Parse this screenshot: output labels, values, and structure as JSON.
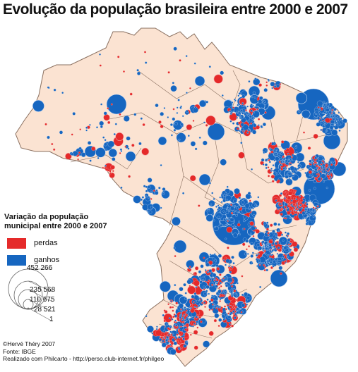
{
  "title": "Evolução da população brasileira entre 2000 e 2007",
  "colors": {
    "land": "#fbe3d2",
    "border": "#8a7060",
    "gain": "#1666c0",
    "loss": "#e52a2a",
    "gain_outline": "#c9d8ef"
  },
  "legend": {
    "title_line1": "Variação da população",
    "title_line2": "municipal entre 2000 e 2007",
    "items": [
      {
        "label": "perdas",
        "color": "#e52a2a"
      },
      {
        "label": "ganhos",
        "color": "#1666c0"
      }
    ]
  },
  "size_legend": {
    "values": [
      "452 266",
      "235 568",
      "110 675",
      "28 521",
      "1"
    ]
  },
  "credits": {
    "line1": "©Hervé Théry 2007",
    "line2": "Fonte: IBGE",
    "line3": "Realizado com Philcarto - http://perso.club-internet.fr/philgeo"
  }
}
